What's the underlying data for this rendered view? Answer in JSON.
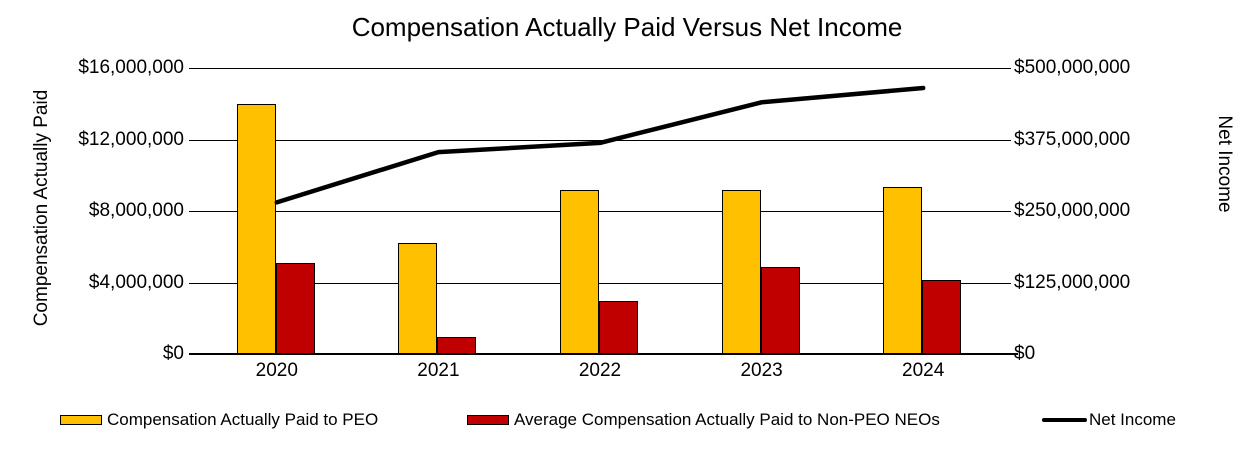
{
  "chart_data": {
    "type": "bar+line",
    "title": "Compensation Actually Paid Versus Net Income",
    "categories": [
      "2020",
      "2021",
      "2022",
      "2023",
      "2024"
    ],
    "series": [
      {
        "name": "Compensation Actually Paid to PEO",
        "type": "bar",
        "axis": "left",
        "color": "#FFC000",
        "values": [
          14000000,
          6200000,
          9200000,
          9200000,
          9350000
        ]
      },
      {
        "name": "Average Compensation Actually Paid to Non-PEO NEOs",
        "type": "bar",
        "axis": "left",
        "color": "#C00000",
        "values": [
          5100000,
          950000,
          2950000,
          4850000,
          4150000
        ]
      },
      {
        "name": "Net Income",
        "type": "line",
        "axis": "right",
        "color": "#000000",
        "values": [
          265000000,
          353000000,
          369000000,
          440000000,
          465000000
        ]
      }
    ],
    "y_left": {
      "label": "Compensation Actually Paid",
      "min": 0,
      "max": 16000000,
      "ticks_top_to_bottom": [
        "$16,000,000",
        "$12,000,000",
        "$8,000,000",
        "$4,000,000",
        "$0"
      ]
    },
    "y_right": {
      "label": "Net Income",
      "min": 0,
      "max": 500000000,
      "ticks_top_to_bottom": [
        "$500,000,000",
        "$375,000,000",
        "$250,000,000",
        "$125,000,000",
        "$0"
      ]
    },
    "grid": true,
    "legend_position": "bottom",
    "colors": {
      "background": "#FFFFFF",
      "axis": "#000000",
      "peo_bar": "#FFC000",
      "non_peo_bar": "#C00000",
      "net_income_line": "#000000"
    }
  }
}
